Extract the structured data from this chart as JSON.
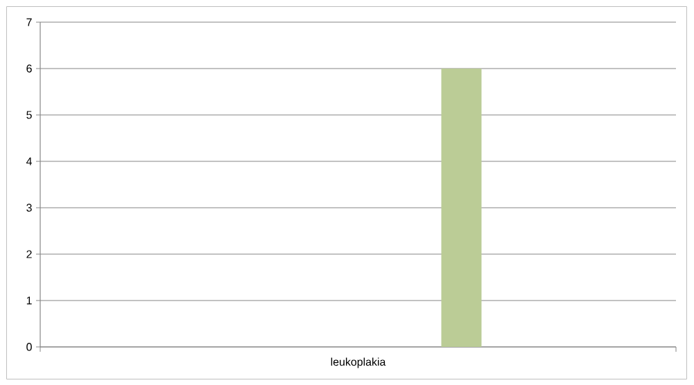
{
  "chart_data": {
    "type": "bar",
    "categories": [
      "leukoplakia"
    ],
    "series": [
      {
        "color": "#bbcc96",
        "values": [
          6
        ]
      }
    ],
    "ylim": [
      0,
      7
    ],
    "yticks": [
      0,
      1,
      2,
      3,
      4,
      5,
      6,
      7
    ],
    "grid": "y",
    "legend": false
  }
}
